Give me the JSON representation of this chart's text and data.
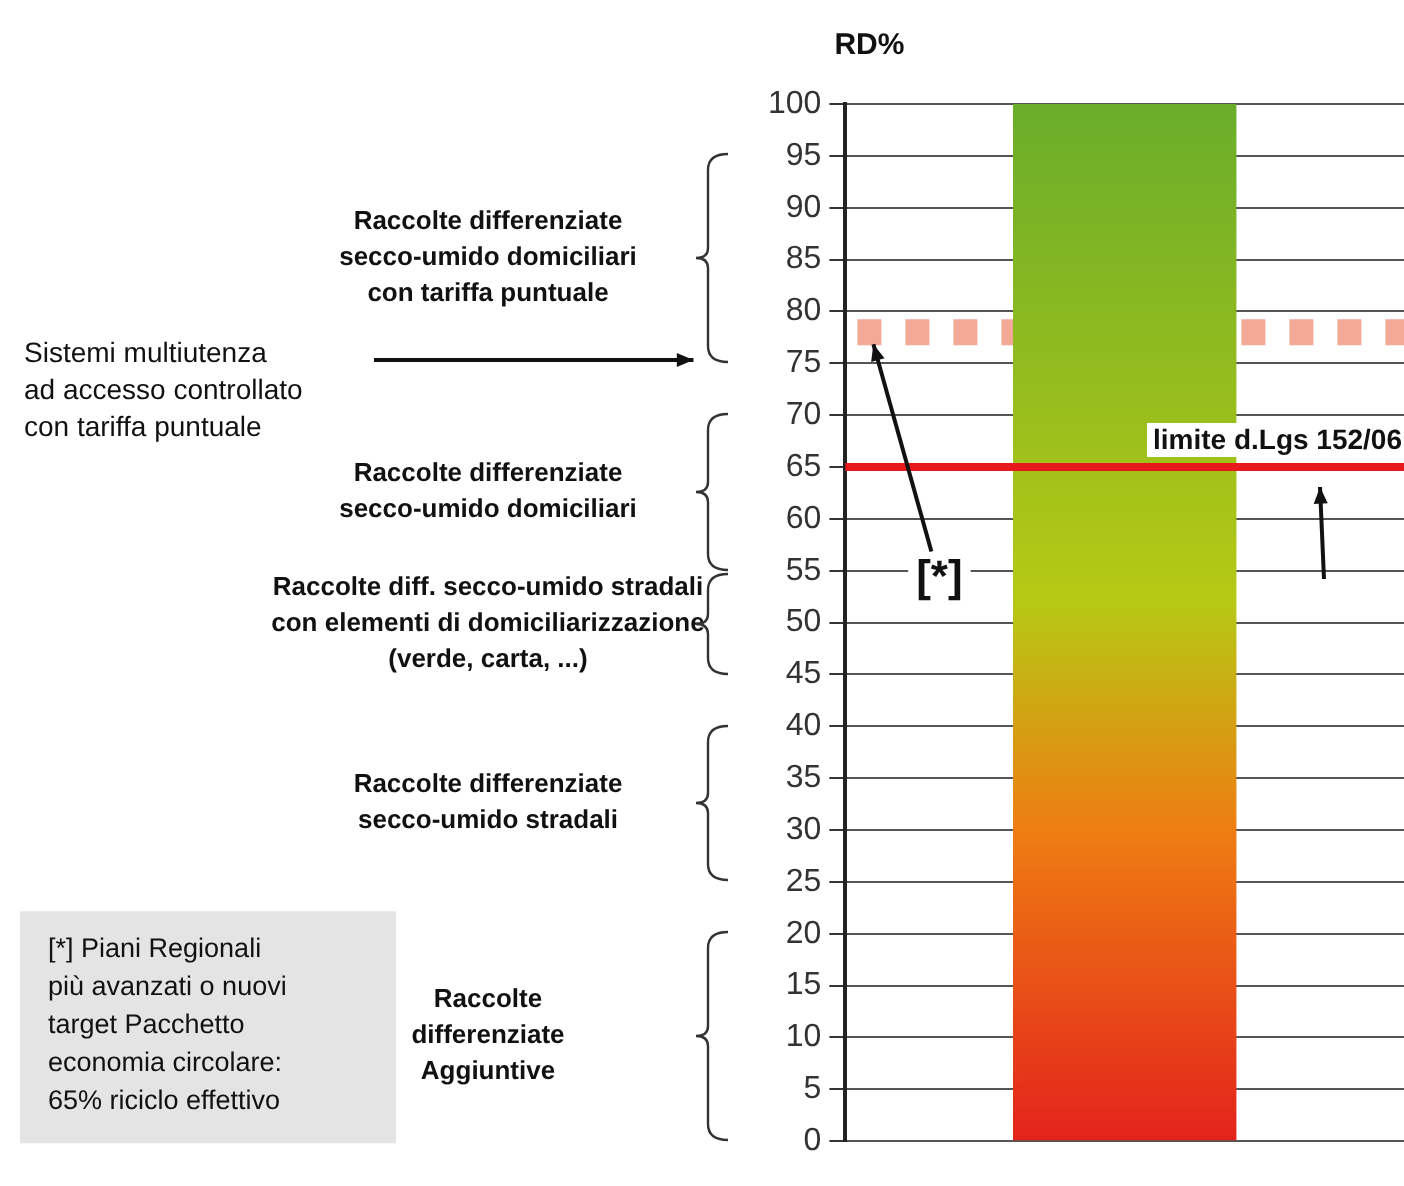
{
  "chart_data": {
    "type": "bar",
    "ylabel": "RD%",
    "categories": [
      null
    ],
    "series": [
      {
        "color": "#6aad2a",
        "values": [
          100
        ]
      }
    ],
    "ylim": [
      0,
      100
    ],
    "yticks": [
      0,
      5,
      10,
      15,
      20,
      25,
      30,
      35,
      40,
      45,
      50,
      55,
      60,
      65,
      70,
      75,
      80,
      85,
      90,
      95,
      100
    ],
    "grid": "y",
    "legend": false,
    "ref_lines": [
      {
        "axis": "y",
        "value": 65,
        "label": "limite d.Lgs 152/06",
        "color": "#e8191c",
        "line_style": "solid"
      },
      {
        "axis": "y",
        "value": 78,
        "label": "[*]",
        "color": "#f4a896",
        "line_style": "dashed"
      }
    ],
    "annotations": [
      "Raccolte differenziate\nsecco-umido domiciliari\ncon tariffa puntuale",
      "Raccolte differenziate\nsecco-umido domiciliari",
      "Raccolte diff. secco-umido stradali\ncon elementi di domiciliarizzazione\n(verde, carta, ...)",
      "Raccolte differenziate\nsecco-umido stradali",
      "Raccolte\ndifferenziate\nAggiuntive",
      "Sistemi multiutenza\nad accesso controllato\ncon tariffa puntuale",
      "[*] Piani Regionali\npiù avanzati o nuovi\ntarget Pacchetto\neconomia circolare:\n65% riciclo effettivo"
    ]
  }
}
